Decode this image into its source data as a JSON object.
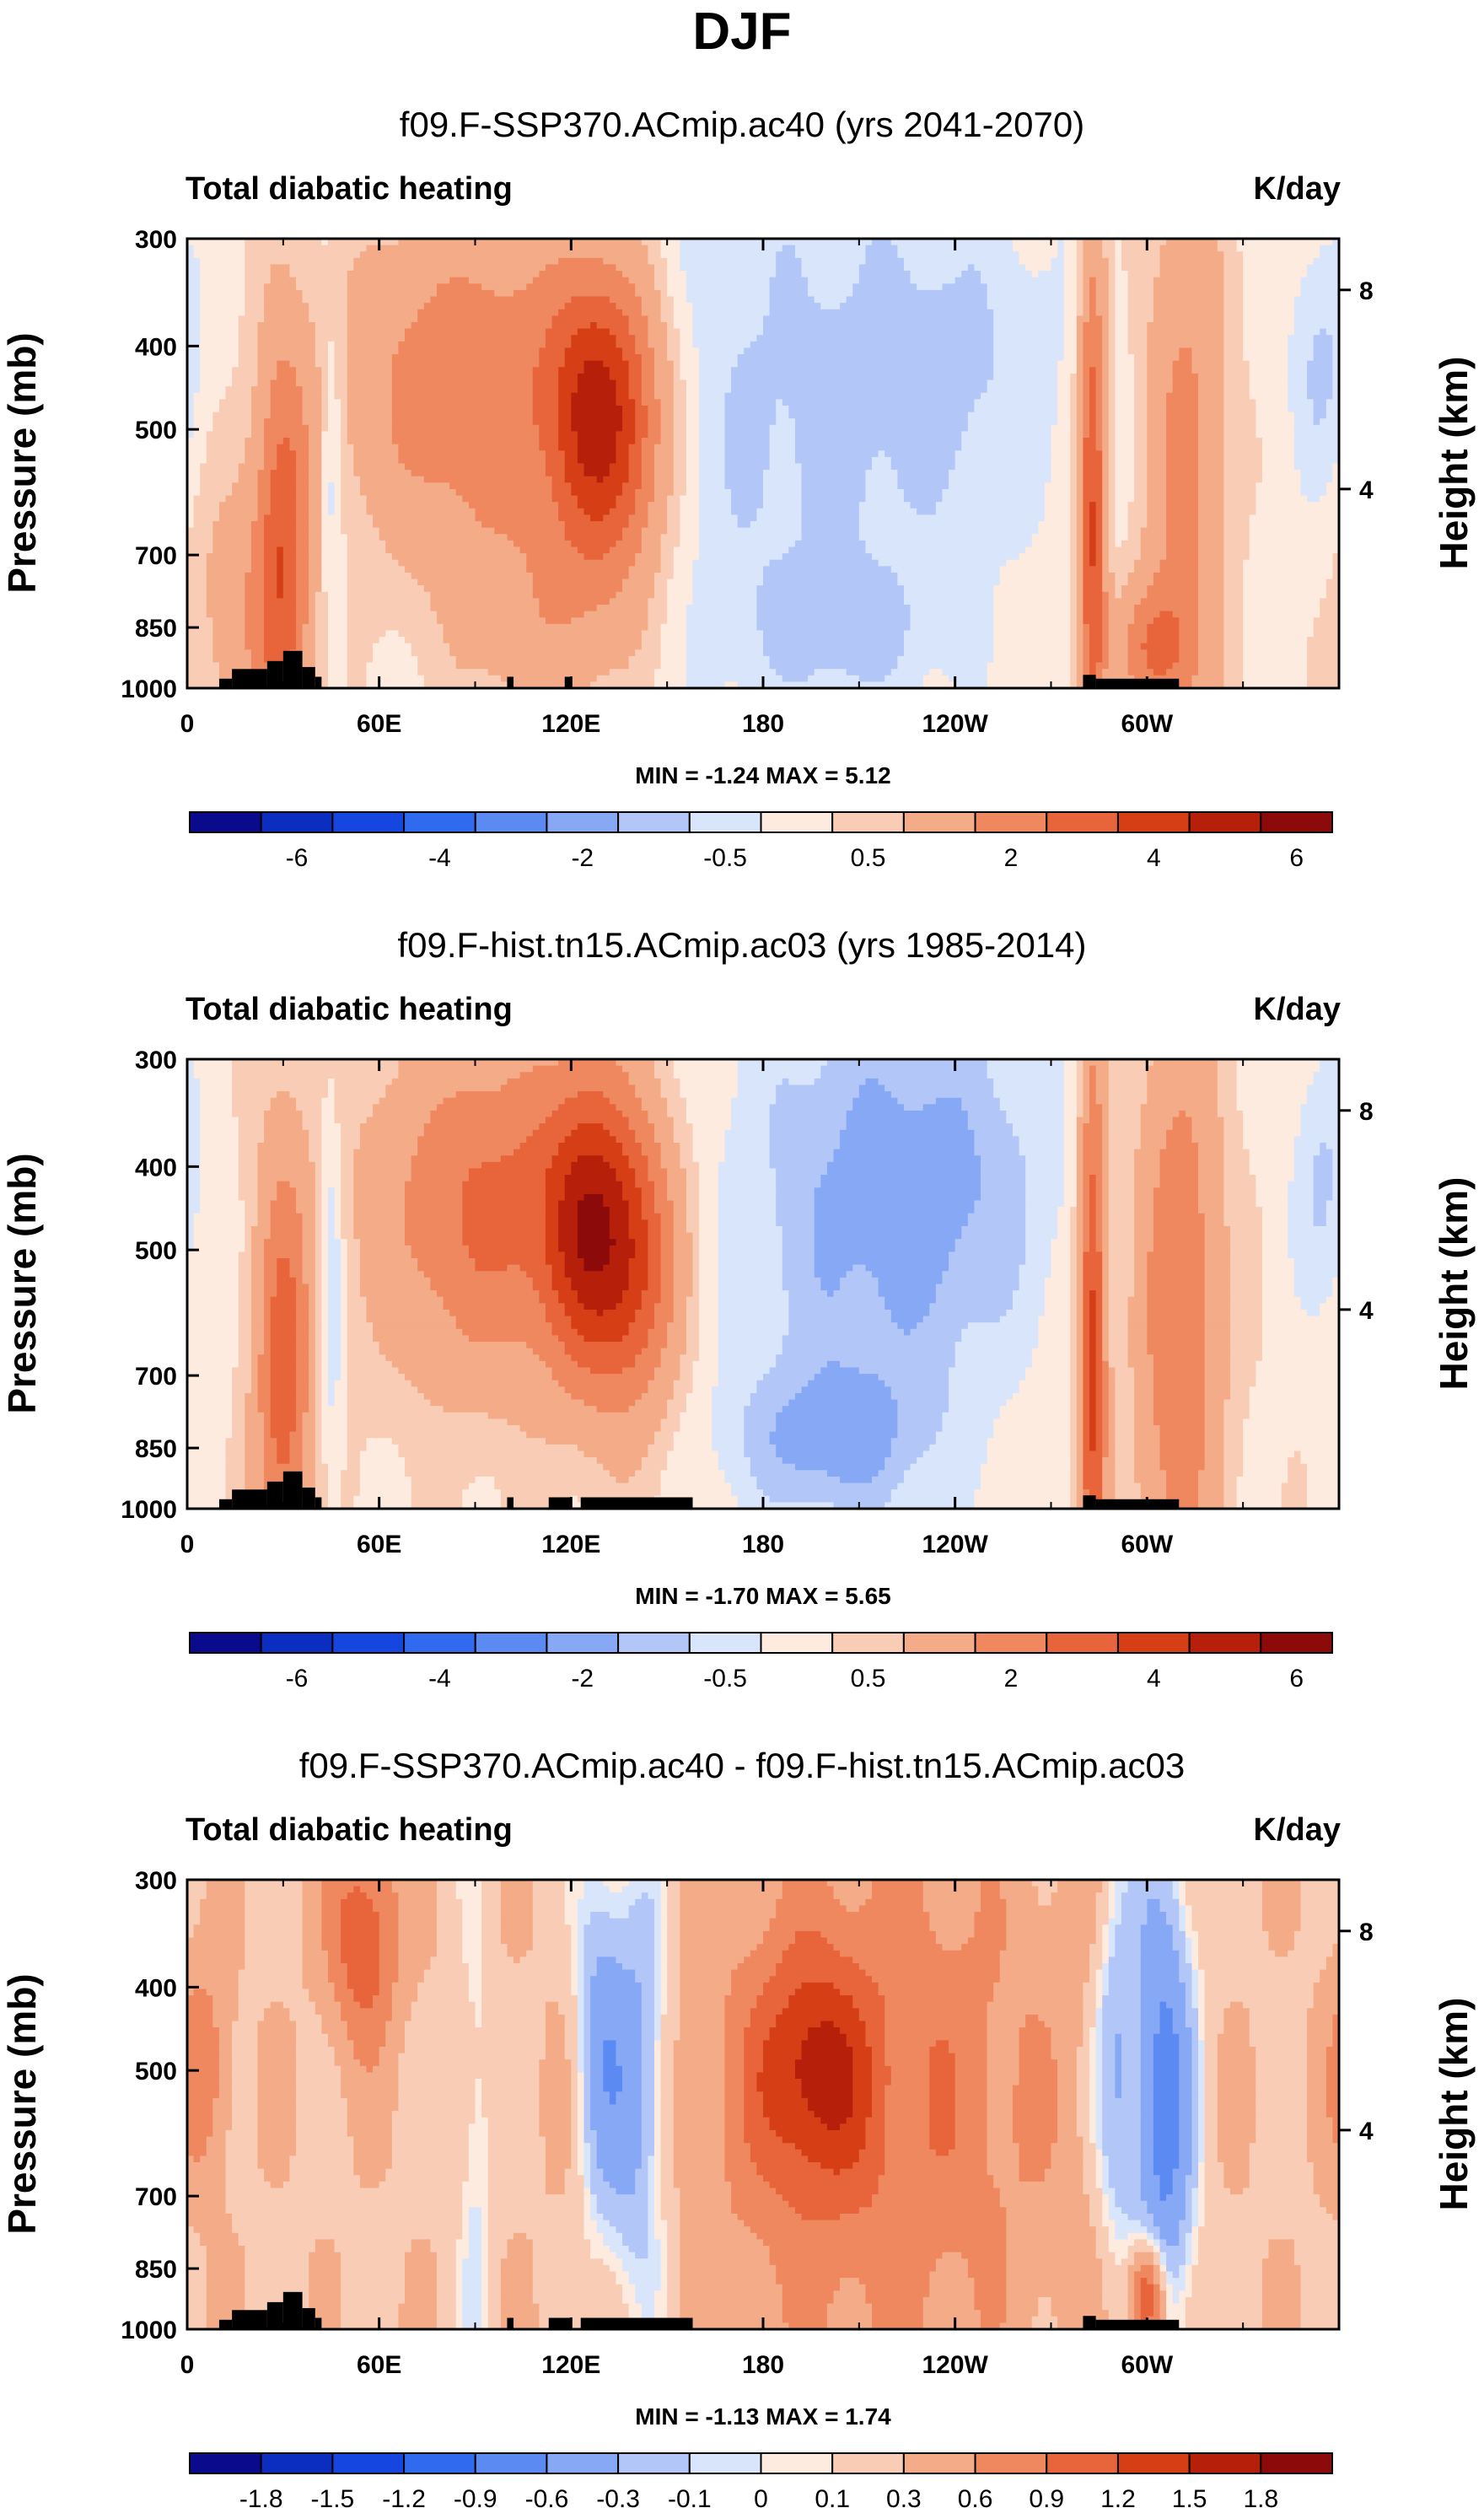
{
  "figure_title": "DJF",
  "colors": {
    "div": [
      "#0a0a8c",
      "#0b2ec1",
      "#1547e0",
      "#2f6aef",
      "#5b8bf2",
      "#87a9f5",
      "#b2c7f7",
      "#d8e5fa",
      "#fdebe0",
      "#f9cdb5",
      "#f4ab88",
      "#ef885f",
      "#e8643a",
      "#d63f16",
      "#b6200b",
      "#8c0a0a"
    ],
    "topo": "#000000"
  },
  "chart_data": [
    {
      "type": "heatmap",
      "title": "f09.F-SSP370.ACmip.ac40 (yrs 2041-2070)",
      "left_label": "Total diabatic heating",
      "right_label": "K/day",
      "xlabel": "",
      "ylabel": "Pressure (mb)",
      "ylabel_right": "Height (km)",
      "x_ticks": [
        "0",
        "60E",
        "120E",
        "180",
        "120W",
        "60W"
      ],
      "x_tick_values": [
        0,
        60,
        120,
        180,
        240,
        300
      ],
      "xlim": [
        0,
        360
      ],
      "y_ticks": [
        "300",
        "400",
        "500",
        "700",
        "850",
        "1000"
      ],
      "y_tick_values": [
        300,
        400,
        500,
        700,
        850,
        1000
      ],
      "ylim": [
        1000,
        300
      ],
      "y2_ticks": [
        "8",
        "4"
      ],
      "y2_tick_values": [
        8,
        4
      ],
      "stats_text": "MIN =  -1.24  MAX =   5.12",
      "colorbar": {
        "labels": [
          "-6",
          "-4",
          "-2",
          "-0.5",
          "0.5",
          "2",
          "4",
          "6"
        ],
        "label_boundaries": [
          1,
          3,
          5,
          7,
          9,
          11,
          13,
          15
        ]
      },
      "features": [
        {
          "lon": 30,
          "p": 700,
          "v": 3.0,
          "w": 6,
          "h": 1.2
        },
        {
          "lon": 18,
          "p": 820,
          "v": 1.2,
          "w": 12,
          "h": 0.8
        },
        {
          "lon": 45,
          "p": 550,
          "v": -1.0,
          "w": 2.5,
          "h": 0.8
        },
        {
          "lon": 90,
          "p": 450,
          "v": 2.6,
          "w": 28,
          "h": 0.9
        },
        {
          "lon": 125,
          "p": 480,
          "v": 3.2,
          "w": 10,
          "h": 0.8
        },
        {
          "lon": 138,
          "p": 500,
          "v": 2.6,
          "w": 10,
          "h": 0.8
        },
        {
          "lon": 112,
          "p": 850,
          "v": 1.2,
          "w": 20,
          "h": 0.6
        },
        {
          "lon": 190,
          "p": 480,
          "v": -0.9,
          "w": 42,
          "h": 1.6
        },
        {
          "lon": 205,
          "p": 860,
          "v": -0.7,
          "w": 20,
          "h": 0.35
        },
        {
          "lon": 242,
          "p": 420,
          "v": -0.6,
          "w": 22,
          "h": 0.8
        },
        {
          "lon": 283,
          "p": 650,
          "v": 3.8,
          "w": 3,
          "h": 1.6
        },
        {
          "lon": 302,
          "p": 900,
          "v": 2.4,
          "w": 8,
          "h": 0.35
        },
        {
          "lon": 312,
          "p": 550,
          "v": 2.0,
          "w": 9,
          "h": 1.6
        },
        {
          "lon": 355,
          "p": 420,
          "v": -0.9,
          "w": 7,
          "h": 0.7
        }
      ],
      "base": 0.3
    },
    {
      "type": "heatmap",
      "title": "f09.F-hist.tn15.ACmip.ac03 (yrs 1985-2014)",
      "left_label": "Total diabatic heating",
      "right_label": "K/day",
      "xlabel": "",
      "ylabel": "Pressure (mb)",
      "ylabel_right": "Height (km)",
      "x_ticks": [
        "0",
        "60E",
        "120E",
        "180",
        "120W",
        "60W"
      ],
      "x_tick_values": [
        0,
        60,
        120,
        180,
        240,
        300
      ],
      "xlim": [
        0,
        360
      ],
      "y_ticks": [
        "300",
        "400",
        "500",
        "700",
        "850",
        "1000"
      ],
      "y_tick_values": [
        300,
        400,
        500,
        700,
        850,
        1000
      ],
      "ylim": [
        1000,
        300
      ],
      "y2_ticks": [
        "8",
        "4"
      ],
      "y2_tick_values": [
        8,
        4
      ],
      "stats_text": "MIN =  -1.70  MAX =   5.65",
      "colorbar": {
        "labels": [
          "-6",
          "-4",
          "-2",
          "-0.5",
          "0.5",
          "2",
          "4",
          "6"
        ],
        "label_boundaries": [
          1,
          3,
          5,
          7,
          9,
          11,
          13,
          15
        ]
      },
      "features": [
        {
          "lon": 30,
          "p": 700,
          "v": 3.2,
          "w": 6,
          "h": 1.2
        },
        {
          "lon": 45,
          "p": 550,
          "v": -1.1,
          "w": 2.5,
          "h": 0.9
        },
        {
          "lon": 95,
          "p": 450,
          "v": 2.8,
          "w": 25,
          "h": 0.9
        },
        {
          "lon": 125,
          "p": 470,
          "v": 3.6,
          "w": 10,
          "h": 0.8
        },
        {
          "lon": 140,
          "p": 520,
          "v": 3.0,
          "w": 10,
          "h": 0.8
        },
        {
          "lon": 210,
          "p": 450,
          "v": -1.4,
          "w": 30,
          "h": 1.4
        },
        {
          "lon": 200,
          "p": 840,
          "v": -1.2,
          "w": 22,
          "h": 0.4
        },
        {
          "lon": 245,
          "p": 420,
          "v": -0.8,
          "w": 22,
          "h": 0.9
        },
        {
          "lon": 283,
          "p": 650,
          "v": 4.0,
          "w": 3,
          "h": 1.6
        },
        {
          "lon": 310,
          "p": 600,
          "v": 2.6,
          "w": 9,
          "h": 1.6
        },
        {
          "lon": 355,
          "p": 420,
          "v": -1.0,
          "w": 7,
          "h": 0.7
        }
      ],
      "base": 0.4
    },
    {
      "type": "heatmap",
      "title": "f09.F-SSP370.ACmip.ac40 - f09.F-hist.tn15.ACmip.ac03",
      "left_label": "Total diabatic heating",
      "right_label": "K/day",
      "xlabel": "",
      "ylabel": "Pressure (mb)",
      "ylabel_right": "Height (km)",
      "x_ticks": [
        "0",
        "60E",
        "120E",
        "180",
        "120W",
        "60W"
      ],
      "x_tick_values": [
        0,
        60,
        120,
        180,
        240,
        300
      ],
      "xlim": [
        0,
        360
      ],
      "y_ticks": [
        "300",
        "400",
        "500",
        "700",
        "850",
        "1000"
      ],
      "y_tick_values": [
        300,
        400,
        500,
        700,
        850,
        1000
      ],
      "ylim": [
        1000,
        300
      ],
      "y2_ticks": [
        "8",
        "4"
      ],
      "y2_tick_values": [
        8,
        4
      ],
      "stats_text": "MIN =  -1.13  MAX =   1.74",
      "colorbar": {
        "labels": [
          "-1.8",
          "-1.5",
          "-1.2",
          "-0.9",
          "-0.6",
          "-0.3",
          "-0.1",
          "0",
          "0.1",
          "0.3",
          "0.6",
          "0.9",
          "1.2",
          "1.5",
          "1.8"
        ],
        "label_boundaries": [
          1,
          2,
          3,
          4,
          5,
          6,
          7,
          8,
          9,
          10,
          11,
          12,
          13,
          14,
          15
        ]
      },
      "features": [
        {
          "lon": 55,
          "p": 350,
          "v": 0.9,
          "w": 8,
          "h": 0.6
        },
        {
          "lon": 5,
          "p": 500,
          "v": 0.6,
          "w": 6,
          "h": 0.6
        },
        {
          "lon": 140,
          "p": 520,
          "v": -0.8,
          "w": 8,
          "h": 1.2
        },
        {
          "lon": 128,
          "p": 450,
          "v": -0.5,
          "w": 5,
          "h": 1.0
        },
        {
          "lon": 215,
          "p": 550,
          "v": 0.65,
          "w": 42,
          "h": 1.5
        },
        {
          "lon": 195,
          "p": 500,
          "v": 0.9,
          "w": 12,
          "h": 0.6
        },
        {
          "lon": 305,
          "p": 550,
          "v": -1.05,
          "w": 7,
          "h": 1.4
        },
        {
          "lon": 290,
          "p": 500,
          "v": -0.6,
          "w": 5,
          "h": 1.0
        },
        {
          "lon": 300,
          "p": 920,
          "v": 1.4,
          "w": 4,
          "h": 0.3
        },
        {
          "lon": 90,
          "p": 600,
          "v": -0.3,
          "w": 4,
          "h": 1.2
        }
      ],
      "base": 0.25
    }
  ],
  "topography": [
    {
      "lon0": 10,
      "lon1": 14,
      "p": 975
    },
    {
      "lon0": 14,
      "lon1": 25,
      "p": 950
    },
    {
      "lon0": 25,
      "lon1": 27,
      "p": 950
    },
    {
      "lon0": 25,
      "lon1": 30,
      "p": 930
    },
    {
      "lon0": 30,
      "lon1": 36,
      "p": 905
    },
    {
      "lon0": 36,
      "lon1": 40,
      "p": 945
    },
    {
      "lon0": 40,
      "lon1": 42,
      "p": 970
    },
    {
      "lon0": 100,
      "lon1": 102,
      "p": 970
    },
    {
      "lon0": 118,
      "lon1": 120,
      "p": 970
    },
    {
      "lon0": 280,
      "lon1": 284,
      "p": 965
    },
    {
      "lon0": 284,
      "lon1": 310,
      "p": 975
    }
  ],
  "topography_extra_lower": [
    {
      "lon0": 113,
      "lon1": 120,
      "p": 970
    },
    {
      "lon0": 123,
      "lon1": 158,
      "p": 970
    }
  ]
}
